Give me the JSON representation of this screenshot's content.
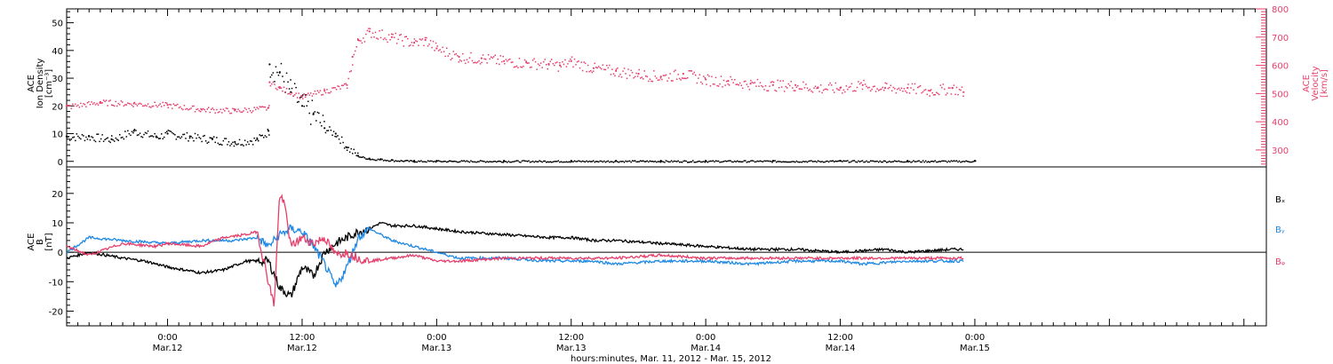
{
  "colors": {
    "black": "#000000",
    "blue": "#1e88e5",
    "red": "#e63f6b"
  },
  "time_axis": {
    "xlabel": "hours:minutes, Mar. 11, 2012 - Mar. 15, 2012",
    "start_hours": -9,
    "end_hours": 98,
    "ticks": [
      {
        "hour": 0,
        "time": "0:00",
        "date": "Mar.12"
      },
      {
        "hour": 12,
        "time": "12:00",
        "date": "Mar.12"
      },
      {
        "hour": 24,
        "time": "0:00",
        "date": "Mar.13"
      },
      {
        "hour": 36,
        "time": "12:00",
        "date": "Mar.13"
      },
      {
        "hour": 48,
        "time": "0:00",
        "date": "Mar.14"
      },
      {
        "hour": 60,
        "time": "12:00",
        "date": "Mar.14"
      },
      {
        "hour": 72,
        "time": "0:00",
        "date": "Mar.15"
      }
    ]
  },
  "chart_data": [
    {
      "type": "scatter",
      "panel": "top",
      "ylabel": [
        "ACE",
        "Ion Density",
        "[cm⁻³]"
      ],
      "ylim": [
        -2,
        55
      ],
      "yticks": [
        0,
        10,
        20,
        30,
        40,
        50
      ],
      "y2label": [
        "ACE",
        "Velocity",
        "[km/s]"
      ],
      "y2lim": [
        240,
        800
      ],
      "y2ticks": [
        300,
        400,
        500,
        600,
        700,
        800
      ],
      "series": [
        {
          "key": "density",
          "axis": "left",
          "color": "black",
          "x": [
            -9,
            -7,
            -5,
            -3,
            -1,
            0,
            2,
            4,
            6,
            8,
            9,
            9.1,
            10,
            11,
            12,
            13,
            14,
            15,
            16,
            17,
            18,
            19,
            20,
            22,
            24,
            30,
            36,
            40,
            44,
            48,
            54,
            60,
            66,
            72
          ],
          "y": [
            9,
            9,
            8,
            11,
            9,
            10,
            9,
            8,
            7,
            8,
            11,
            35,
            32,
            25,
            20,
            17,
            12,
            10,
            5,
            2,
            1,
            0.8,
            0.5,
            0.2,
            0.2,
            0.2,
            0.2,
            0.2,
            0.2,
            0.2,
            0.2,
            0.2,
            0.2,
            0.2
          ]
        },
        {
          "key": "velocity",
          "axis": "right",
          "color": "red",
          "x": [
            -9,
            -6,
            -3,
            0,
            3,
            6,
            9,
            9.1,
            10,
            12,
            14,
            16,
            16.5,
            17,
            18,
            20,
            22,
            23,
            24,
            26,
            28,
            30,
            32,
            34,
            35,
            36,
            38,
            40,
            42,
            44,
            46,
            48,
            50,
            52,
            54,
            56,
            58,
            60,
            62,
            64,
            66,
            68,
            70,
            71
          ],
          "y": [
            455,
            470,
            465,
            460,
            445,
            440,
            450,
            540,
            520,
            490,
            510,
            530,
            630,
            690,
            720,
            700,
            680,
            690,
            660,
            630,
            625,
            615,
            610,
            605,
            600,
            615,
            590,
            580,
            570,
            560,
            570,
            550,
            545,
            535,
            530,
            530,
            520,
            520,
            530,
            520,
            520,
            510,
            520,
            505
          ]
        }
      ]
    },
    {
      "type": "line",
      "panel": "bottom",
      "ylabel": [
        "ACE",
        "B",
        "[nT]"
      ],
      "ylim": [
        -25,
        29
      ],
      "yticks": [
        -20,
        -10,
        0,
        10,
        20
      ],
      "zero_line": true,
      "series": [
        {
          "name": "Bₓ",
          "color": "black",
          "x": [
            -9,
            -7,
            -4,
            -2,
            0,
            3,
            5,
            7,
            9,
            10,
            11,
            12,
            13,
            14,
            15,
            16,
            17,
            18,
            19,
            20,
            22,
            24,
            26,
            30,
            34,
            36,
            38,
            40,
            44,
            48,
            52,
            56,
            60,
            64,
            66,
            70,
            71
          ],
          "y": [
            -2,
            0,
            -2,
            -3,
            -5,
            -7,
            -6,
            -3,
            -3,
            -12,
            -15,
            -5,
            -8,
            0,
            3,
            5,
            7,
            8,
            10,
            9,
            9,
            8,
            7,
            6,
            5,
            5,
            4,
            4,
            3,
            2,
            1,
            1,
            0,
            1,
            0,
            1,
            1
          ]
        },
        {
          "name": "Bᵧ",
          "color": "blue",
          "x": [
            -9,
            -7,
            -4,
            0,
            3,
            6,
            8,
            9,
            10,
            11,
            12,
            13,
            14,
            15,
            16,
            17,
            18,
            20,
            22,
            24,
            26,
            30,
            34,
            36,
            38,
            40,
            44,
            48,
            52,
            56,
            60,
            62,
            66,
            70,
            71
          ],
          "y": [
            0,
            5,
            4,
            3,
            4,
            4,
            5,
            2,
            6,
            8,
            7,
            2,
            -4,
            -12,
            -5,
            5,
            8,
            4,
            2,
            0,
            -2,
            -2,
            -3,
            -3,
            -3,
            -4,
            -3,
            -3,
            -4,
            -3,
            -3,
            -4,
            -3,
            -3,
            -3
          ]
        },
        {
          "name": "Bᵩ",
          "color": "red",
          "x": [
            -9,
            -7,
            -4,
            -1,
            0,
            3,
            5,
            7,
            8,
            9,
            9.5,
            10,
            10.5,
            11,
            12,
            13,
            14,
            15,
            16,
            17,
            18,
            20,
            22,
            24,
            26,
            30,
            34,
            36,
            40,
            44,
            48,
            52,
            56,
            60,
            64,
            68,
            71
          ],
          "y": [
            2,
            -1,
            3,
            2,
            3,
            2,
            5,
            6,
            7,
            -10,
            -18,
            20,
            15,
            2,
            5,
            3,
            5,
            -1,
            0,
            -2,
            -3,
            -2,
            -1,
            -3,
            -3,
            -2,
            -2,
            -2,
            -2,
            -1,
            -2,
            -2,
            -2,
            -2,
            -2,
            -2,
            -2
          ]
        }
      ]
    }
  ]
}
